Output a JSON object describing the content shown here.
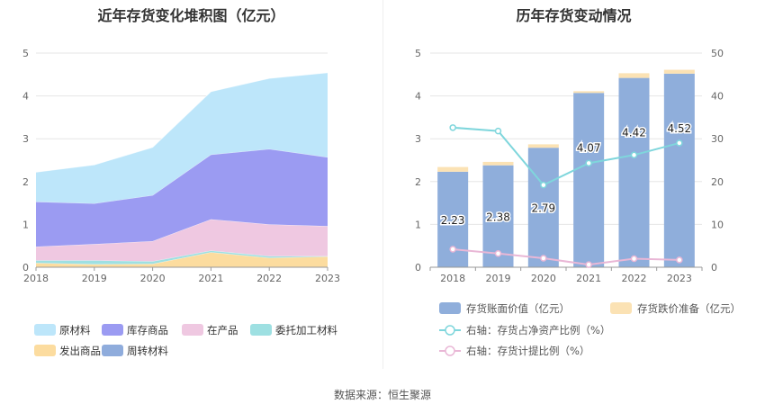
{
  "source_text": "数据来源：恒生聚源",
  "chart_data": [
    {
      "type": "area",
      "stacked": true,
      "title": "近年存货变化堆积图（亿元）",
      "x": [
        "2018",
        "2019",
        "2020",
        "2021",
        "2022",
        "2023"
      ],
      "ylim": [
        0,
        5
      ],
      "yticks": [
        "0",
        "1",
        "2",
        "3",
        "4",
        "5"
      ],
      "grid": true,
      "legend_position": "bottom",
      "series": [
        {
          "name": "原材料",
          "color": "#bde6fa",
          "values": [
            0.69,
            0.9,
            1.12,
            1.47,
            1.65,
            1.97
          ]
        },
        {
          "name": "库存商品",
          "color": "#9b9bf2",
          "values": [
            1.05,
            0.95,
            1.07,
            1.51,
            1.76,
            1.61
          ]
        },
        {
          "name": "在产品",
          "color": "#efc8e1",
          "values": [
            0.32,
            0.38,
            0.47,
            0.73,
            0.74,
            0.7
          ]
        },
        {
          "name": "委托加工材料",
          "color": "#9ee0e2",
          "values": [
            0.06,
            0.09,
            0.06,
            0.04,
            0.04,
            0.01
          ]
        },
        {
          "name": "发出商品",
          "color": "#fcdc9f",
          "values": [
            0.1,
            0.07,
            0.08,
            0.35,
            0.22,
            0.25
          ]
        },
        {
          "name": "周转材料",
          "color": "#8facdc",
          "values": [
            0.0,
            0.0,
            0.0,
            0.0,
            0.0,
            0.0
          ]
        }
      ]
    },
    {
      "type": "bar",
      "title": "历年存货变动情况",
      "categories": [
        "2018",
        "2019",
        "2020",
        "2021",
        "2022",
        "2023"
      ],
      "ylim": [
        0,
        5
      ],
      "yticks": [
        "0",
        "1",
        "2",
        "3",
        "4",
        "5"
      ],
      "y2lim": [
        0,
        50
      ],
      "y2ticks": [
        "0",
        "10",
        "20",
        "30",
        "40",
        "50"
      ],
      "grid": true,
      "legend_position": "bottom",
      "series": [
        {
          "name": "存货账面价值（亿元）",
          "kind": "bar",
          "color": "#8faedb",
          "values": [
            2.23,
            2.38,
            2.79,
            4.07,
            4.42,
            4.52
          ],
          "labels": [
            "2.23",
            "2.38",
            "2.79",
            "4.07",
            "4.42",
            "4.52"
          ]
        },
        {
          "name": "存货跌价准备（亿元）",
          "kind": "bar-stacked",
          "color": "#fbe2b4",
          "values": [
            0.11,
            0.08,
            0.08,
            0.04,
            0.11,
            0.09
          ]
        },
        {
          "name": "右轴：存货占净资产比例（%）",
          "kind": "line",
          "axis": "right",
          "color": "#7fd6dc",
          "values": [
            32.6,
            31.8,
            19.2,
            24.3,
            26.2,
            29.0
          ]
        },
        {
          "name": "右轴：存货计提比例（%）",
          "kind": "line",
          "axis": "right",
          "color": "#e9b7d6",
          "values": [
            4.2,
            3.2,
            2.1,
            0.6,
            2.0,
            1.7
          ]
        }
      ]
    }
  ]
}
